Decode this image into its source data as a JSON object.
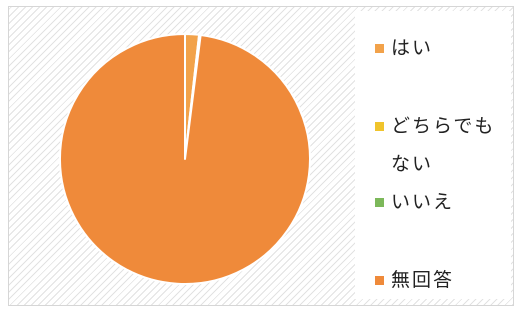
{
  "chart_data": {
    "type": "pie",
    "title": "",
    "start_angle_deg": 0,
    "direction": "clockwise",
    "slices": [
      {
        "label": "はい",
        "value": 1.8,
        "color": "#f2a24a"
      },
      {
        "label": "どちらでもない",
        "value": 0.2,
        "color": "#f0c42c"
      },
      {
        "label": "いいえ",
        "value": 0.0,
        "color": "#7cb85a"
      },
      {
        "label": "無回答",
        "value": 98.0,
        "color": "#ef8a3a"
      }
    ],
    "legend_position": "right"
  }
}
